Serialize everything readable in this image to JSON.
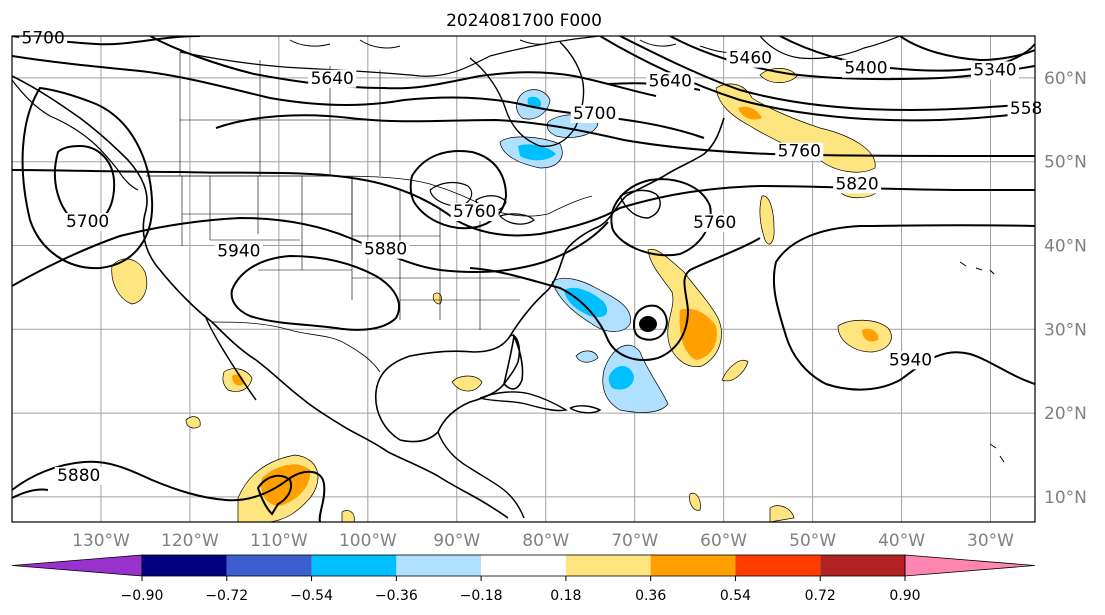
{
  "title": "2024081700 F000",
  "map": {
    "lon_range": [
      -140,
      -25
    ],
    "lat_range": [
      7,
      65
    ],
    "lon_ticks": [
      -130,
      -120,
      -110,
      -100,
      -90,
      -80,
      -70,
      -60,
      -50,
      -40,
      -30
    ],
    "lon_tick_labels": [
      "130°W",
      "120°W",
      "110°W",
      "100°W",
      "90°W",
      "80°W",
      "70°W",
      "60°W",
      "50°W",
      "40°W",
      "30°W"
    ],
    "lat_ticks": [
      10,
      20,
      30,
      40,
      50,
      60
    ],
    "lat_tick_labels": [
      "10°N",
      "20°N",
      "30°N",
      "40°N",
      "50°N",
      "60°N"
    ],
    "grid": true,
    "colors": {
      "frame": "#000000",
      "grid": "#a0a0a0",
      "coast": "#000000",
      "contour": "#000000"
    }
  },
  "contour_labels": [
    {
      "text": "5700",
      "lon": -136.5,
      "lat": 64.1
    },
    {
      "text": "5640",
      "lon": -104,
      "lat": 59.3
    },
    {
      "text": "5640",
      "lon": -66,
      "lat": 59
    },
    {
      "text": "5700",
      "lon": -74.5,
      "lat": 55.1
    },
    {
      "text": "5460",
      "lon": -57,
      "lat": 61.7
    },
    {
      "text": "5400",
      "lon": -44,
      "lat": 60.5
    },
    {
      "text": "5340",
      "lon": -29.5,
      "lat": 60.3
    },
    {
      "text": "558",
      "lon": -26,
      "lat": 55.7
    },
    {
      "text": "5760",
      "lon": -51.5,
      "lat": 50.6
    },
    {
      "text": "5820",
      "lon": -45,
      "lat": 46.7
    },
    {
      "text": "5700",
      "lon": -131.5,
      "lat": 42.2
    },
    {
      "text": "5760",
      "lon": -88,
      "lat": 43.4
    },
    {
      "text": "5880",
      "lon": -98,
      "lat": 38.9
    },
    {
      "text": "5940",
      "lon": -114.5,
      "lat": 38.7
    },
    {
      "text": "5760",
      "lon": -61,
      "lat": 42.1
    },
    {
      "text": "5940",
      "lon": -39,
      "lat": 25.7
    },
    {
      "text": "5880",
      "lon": -132.5,
      "lat": 11.9
    }
  ],
  "colorbar": {
    "colors": [
      "#9932cc",
      "#000080",
      "#3a5fcd",
      "#00bfff",
      "#b0e0ff",
      "#ffffff",
      "#ffe57f",
      "#ffa000",
      "#ff3c00",
      "#b22222",
      "#ff86b0"
    ],
    "tick_labels": [
      "−0.90",
      "−0.72",
      "−0.54",
      "−0.36",
      "−0.18",
      "0.18",
      "0.36",
      "0.54",
      "0.72",
      "0.90"
    ],
    "extend": "both"
  }
}
